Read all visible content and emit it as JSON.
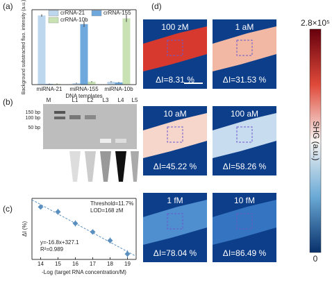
{
  "panel_labels": [
    "(a)",
    "(b)",
    "(c)",
    "(d)"
  ],
  "chart_data": [
    {
      "type": "bar",
      "ylabel": "Background substracted fluo. intensity (a.u.)",
      "xlabel": "DNA templates",
      "categories": [
        "miRNA-21",
        "miRNA-155",
        "miRNA-10b"
      ],
      "ylim": [
        0,
        52
      ],
      "series": [
        {
          "name": "crRNA-21",
          "color": "#bdd7ee",
          "values": [
            48,
            1,
            2
          ],
          "errors": [
            0.8,
            0.3,
            0.4
          ]
        },
        {
          "name": "crRNA-155",
          "color": "#6fa8dc",
          "values": [
            0.5,
            42,
            1.5
          ],
          "errors": [
            0.2,
            2,
            0.3
          ]
        },
        {
          "name": "crRNA-10b",
          "color": "#c9e2b3",
          "values": [
            0.5,
            2,
            46
          ],
          "errors": [
            0.2,
            0.4,
            2.5
          ]
        }
      ]
    },
    {
      "type": "scatter",
      "ylabel": "ΔI (%)",
      "xlabel": "-Log (target RNA concentration/M)",
      "x": [
        14,
        15,
        16,
        17,
        18,
        19
      ],
      "values": [
        86,
        78,
        59,
        45,
        31,
        9
      ],
      "errors": [
        4,
        5,
        5,
        3,
        5,
        6
      ],
      "color": "#5b8fc0",
      "xlim": [
        13.5,
        19.5
      ],
      "xticks": [
        14,
        15,
        16,
        17,
        18,
        19
      ],
      "ylim": [
        0,
        100
      ],
      "annotations": [
        "Threshold=11.7%",
        "LOD=168 zM",
        "y=-16.8x+327.1",
        "R²=0.989"
      ]
    }
  ],
  "gel": {
    "lanes": [
      "M",
      "L1",
      "L2",
      "L3",
      "L4",
      "L5"
    ],
    "markers": [
      "150 bp",
      "100 bp",
      "50 bp"
    ]
  },
  "images": [
    {
      "concentration": "100 zM",
      "delta": "ΔI=8.31 %",
      "color": "#d7392f"
    },
    {
      "concentration": "1 aM",
      "delta": "ΔI=31.53 %",
      "color": "#f2b8a4"
    },
    {
      "concentration": "10 aM",
      "delta": "ΔI=45.22 %",
      "color": "#f6d6cb"
    },
    {
      "concentration": "100 aM",
      "delta": "ΔI=58.26 %",
      "color": "#c8dcef"
    },
    {
      "concentration": "1 fM",
      "delta": "ΔI=78.04 %",
      "color": "#4f8fcf"
    },
    {
      "concentration": "10 fM",
      "delta": "ΔI=86.49 %",
      "color": "#3574c0"
    }
  ],
  "colorbar": {
    "max": "2.8×10⁵",
    "min": "0",
    "label": "SHG (a.u.)"
  }
}
